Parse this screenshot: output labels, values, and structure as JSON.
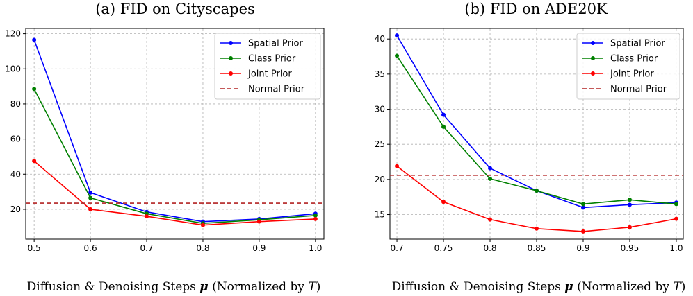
{
  "chart_data": [
    {
      "type": "line",
      "title": "(a) FID on Cityscapes",
      "xlabel_prefix": "Diffusion & Denoising Steps ",
      "xlabel_symbol": "μ",
      "xlabel_mid": " (Normalized by ",
      "xlabel_var": "T",
      "xlabel_suffix": ")",
      "x": [
        0.5,
        0.6,
        0.7,
        0.8,
        0.9,
        1.0
      ],
      "x_tick_labels": [
        "0.5",
        "0.6",
        "0.7",
        "0.8",
        "0.9",
        "1.0"
      ],
      "xlim": [
        0.485,
        1.015
      ],
      "ylim": [
        3,
        123
      ],
      "y_ticks": [
        20,
        40,
        60,
        80,
        100,
        120
      ],
      "grid": true,
      "legend_position": "top-right",
      "series": [
        {
          "name": "Spatial Prior",
          "color": "#0000ff",
          "style": "solid",
          "markers": true,
          "values": [
            116.5,
            29.5,
            18.5,
            13.0,
            14.5,
            17.5
          ]
        },
        {
          "name": "Class Prior",
          "color": "#008000",
          "style": "solid",
          "markers": true,
          "values": [
            88.5,
            26.5,
            17.5,
            12.0,
            14.0,
            16.5
          ]
        },
        {
          "name": "Joint Prior",
          "color": "#ff0000",
          "style": "solid",
          "markers": true,
          "values": [
            47.5,
            20.0,
            16.0,
            11.0,
            13.0,
            14.5
          ]
        },
        {
          "name": "Normal Prior",
          "color": "#b22222",
          "style": "dashed",
          "markers": false,
          "value": 23.5
        }
      ]
    },
    {
      "type": "line",
      "title": "(b) FID on ADE20K",
      "xlabel_prefix": "Diffusion & Denoising Steps ",
      "xlabel_symbol": "μ",
      "xlabel_mid": " (Normalized by ",
      "xlabel_var": "T",
      "xlabel_suffix": ")",
      "x": [
        0.7,
        0.75,
        0.8,
        0.85,
        0.9,
        0.95,
        1.0
      ],
      "x_tick_labels": [
        "0.7",
        "0.75",
        "0.8",
        "0.85",
        "0.9",
        "0.95",
        "1.0"
      ],
      "xlim": [
        0.6925,
        1.0075
      ],
      "ylim": [
        11.5,
        41.5
      ],
      "y_ticks": [
        15,
        20,
        25,
        30,
        35,
        40
      ],
      "grid": true,
      "legend_position": "top-right",
      "series": [
        {
          "name": "Spatial Prior",
          "color": "#0000ff",
          "style": "solid",
          "markers": true,
          "values": [
            40.5,
            29.2,
            21.6,
            18.4,
            16.0,
            16.4,
            16.7
          ]
        },
        {
          "name": "Class Prior",
          "color": "#008000",
          "style": "solid",
          "markers": true,
          "values": [
            37.6,
            27.5,
            20.1,
            18.4,
            16.5,
            17.1,
            16.5
          ]
        },
        {
          "name": "Joint Prior",
          "color": "#ff0000",
          "style": "solid",
          "markers": true,
          "values": [
            21.9,
            16.8,
            14.3,
            13.0,
            12.6,
            13.2,
            14.4
          ]
        },
        {
          "name": "Normal Prior",
          "color": "#b22222",
          "style": "dashed",
          "markers": false,
          "value": 20.6
        }
      ]
    }
  ]
}
